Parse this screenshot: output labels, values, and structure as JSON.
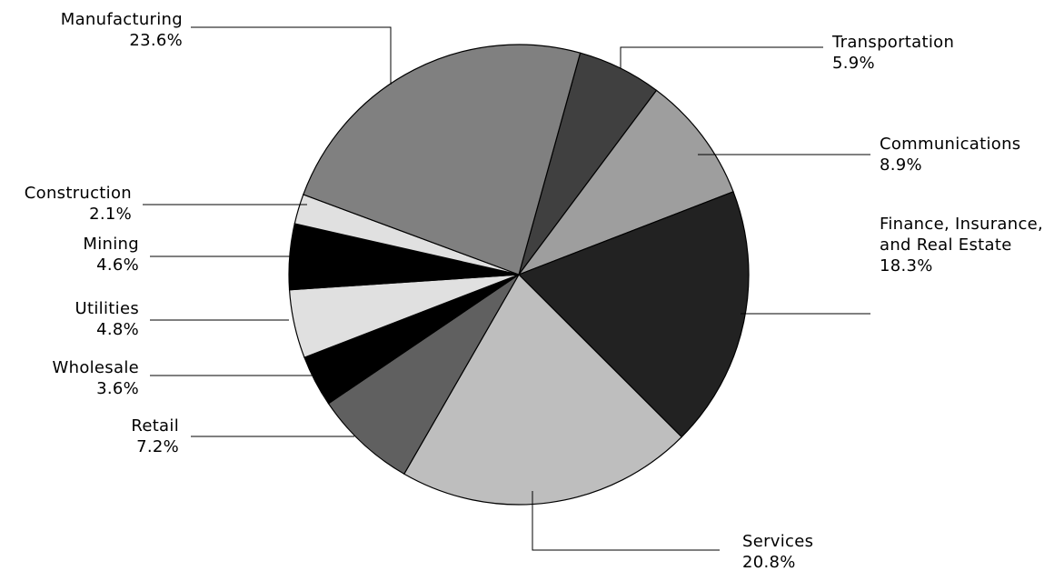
{
  "chart_data": {
    "type": "pie",
    "title": "",
    "legend": "none",
    "slices": [
      {
        "label": "Transportation",
        "value": 5.9,
        "value_label": "5.9%",
        "color": "#404040"
      },
      {
        "label": "Communications",
        "value": 8.9,
        "value_label": "8.9%",
        "color": "#9e9e9e"
      },
      {
        "label": "Finance, Insurance, and Real Estate",
        "label_lines": [
          "Finance, Insurance,",
          "and Real Estate"
        ],
        "value": 18.3,
        "value_label": "18.3%",
        "color": "#222222"
      },
      {
        "label": "Services",
        "value": 20.8,
        "value_label": "20.8%",
        "color": "#bebebe"
      },
      {
        "label": "Retail",
        "value": 7.2,
        "value_label": "7.2%",
        "color": "#606060"
      },
      {
        "label": "Wholesale",
        "value": 3.6,
        "value_label": "3.6%",
        "color": "#000000"
      },
      {
        "label": "Utilities",
        "value": 4.8,
        "value_label": "4.8%",
        "color": "#e0e0e0"
      },
      {
        "label": "Mining",
        "value": 4.6,
        "value_label": "4.6%",
        "color": "#000000"
      },
      {
        "label": "Construction",
        "value": 2.1,
        "value_label": "2.1%",
        "color": "#e0e0e0"
      },
      {
        "label": "Manufacturing",
        "value": 23.6,
        "value_label": "23.6%",
        "color": "#808080"
      }
    ]
  }
}
